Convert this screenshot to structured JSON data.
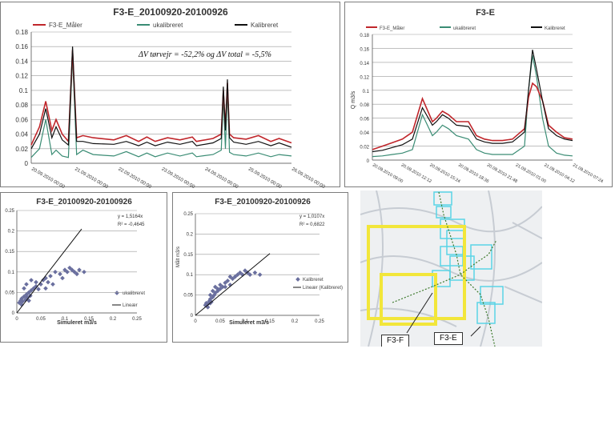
{
  "colors": {
    "measured": "#c0262b",
    "uncalibrated": "#3a8c74",
    "calibrated": "#111111",
    "scatter": "#6a6f9e",
    "grid": "#9a9a9a",
    "highlight": "#f2e63a",
    "catchment": "#5ad4e6",
    "pipe": "#3d7a2c"
  },
  "charts": {
    "ts_main": {
      "title": "F3-E_20100920-20100926",
      "legend": [
        "F3-E_Måler",
        "ukalibreret",
        "Kalibreret"
      ],
      "annotation": "ΔV tørvejr = -52,2% og ΔV total = -5,5%",
      "y_ticks": [
        "0",
        "0.02",
        "0.04",
        "0.06",
        "0.08",
        "0.1",
        "0.12",
        "0.14",
        "0.16",
        "0.18"
      ],
      "x_ticks": [
        "20.09.2010 00:00",
        "21.09.2010 00:00",
        "22.09.2010 00:00",
        "23.09.2010 00:00",
        "24.09.2010 00:00",
        "25.09.2010 00:00",
        "26.09.2010 00:00"
      ]
    },
    "ts_zoom": {
      "title": "F3-E",
      "legend": [
        "F3-E_Måler",
        "ukalibreret",
        "Kalibreret"
      ],
      "ylabel": "Q m3/s",
      "y_ticks": [
        "0",
        "0.02",
        "0.04",
        "0.06",
        "0.08",
        "0.1",
        "0.12",
        "0.14",
        "0.16",
        "0.18"
      ],
      "x_ticks": [
        "20.09.2010 09:00",
        "20.09.2010 12:12",
        "20.09.2010 15:24",
        "20.09.2010 18:36",
        "20.09.2010 21:48",
        "21.09.2010 01:00",
        "21.09.2010 04:12",
        "21.09.2010 07:24"
      ]
    },
    "sc_uncal": {
      "title": "F3-E_20100920-20100926",
      "xlabel": "Simuleret m3/s",
      "equation": "y = 1,5164x",
      "r2": "R² = -0,4645",
      "legend": [
        "ukalibreret",
        "Lineær"
      ],
      "y_ticks": [
        "0",
        "0.05",
        "0.1",
        "0.15",
        "0.2",
        "0.25"
      ],
      "x_ticks": [
        "0",
        "0.05",
        "0.1",
        "0.15",
        "0.2",
        "0.25"
      ]
    },
    "sc_cal": {
      "title": "F3-E_20100920-20100926",
      "xlabel": "Simuleret m3/s",
      "ylabel": "Målt m3/s",
      "equation": "y = 1,0107x",
      "r2": "R² = 0,6822",
      "legend": [
        "Kalibreret",
        "Lineær (Kalibreret)"
      ],
      "y_ticks": [
        "0",
        "0.05",
        "0.1",
        "0.15",
        "0.2",
        "0.25"
      ],
      "x_ticks": [
        "0",
        "0.05",
        "0.1",
        "0.15",
        "0.2",
        "0.25"
      ]
    }
  },
  "map": {
    "labels": [
      "F3-F",
      "F3-E"
    ]
  },
  "chart_data": [
    {
      "type": "line",
      "title": "F3-E_20100920-20100926",
      "ylim": [
        0,
        0.18
      ],
      "x_range": [
        "20.09.2010",
        "26.09.2010"
      ],
      "series": [
        {
          "name": "F3-E_Måler",
          "x": [
            0,
            0.2,
            0.35,
            0.5,
            0.6,
            0.75,
            0.9,
            1.0,
            1.1,
            1.25,
            1.5,
            2,
            2.3,
            2.6,
            2.8,
            3,
            3.3,
            3.6,
            3.9,
            4,
            4.4,
            4.6,
            4.65,
            4.7,
            4.75,
            4.8,
            4.9,
            5.2,
            5.5,
            5.8,
            6,
            6.3
          ],
          "y": [
            0.025,
            0.05,
            0.085,
            0.045,
            0.06,
            0.04,
            0.03,
            0.155,
            0.035,
            0.038,
            0.035,
            0.032,
            0.038,
            0.03,
            0.036,
            0.03,
            0.035,
            0.032,
            0.036,
            0.03,
            0.034,
            0.04,
            0.1,
            0.05,
            0.11,
            0.04,
            0.035,
            0.033,
            0.038,
            0.03,
            0.034,
            0.028
          ]
        },
        {
          "name": "ukalibreret",
          "x": [
            0,
            0.2,
            0.35,
            0.5,
            0.6,
            0.75,
            0.9,
            1.0,
            1.1,
            1.25,
            1.5,
            2,
            2.3,
            2.6,
            2.8,
            3,
            3.3,
            3.6,
            3.9,
            4,
            4.4,
            4.6,
            4.65,
            4.7,
            4.75,
            4.8,
            4.9,
            5.2,
            5.5,
            5.8,
            6,
            6.3
          ],
          "y": [
            0.008,
            0.02,
            0.06,
            0.012,
            0.018,
            0.01,
            0.008,
            0.145,
            0.012,
            0.018,
            0.012,
            0.01,
            0.016,
            0.009,
            0.014,
            0.009,
            0.014,
            0.01,
            0.014,
            0.009,
            0.012,
            0.018,
            0.09,
            0.02,
            0.1,
            0.015,
            0.012,
            0.01,
            0.014,
            0.009,
            0.012,
            0.01
          ]
        },
        {
          "name": "Kalibreret",
          "x": [
            0,
            0.2,
            0.35,
            0.5,
            0.6,
            0.75,
            0.9,
            1.0,
            1.1,
            1.25,
            1.5,
            2,
            2.3,
            2.6,
            2.8,
            3,
            3.3,
            3.6,
            3.9,
            4,
            4.4,
            4.6,
            4.65,
            4.7,
            4.75,
            4.8,
            4.9,
            5.2,
            5.5,
            5.8,
            6,
            6.3
          ],
          "y": [
            0.02,
            0.04,
            0.075,
            0.035,
            0.05,
            0.032,
            0.025,
            0.16,
            0.03,
            0.03,
            0.027,
            0.026,
            0.03,
            0.024,
            0.029,
            0.024,
            0.029,
            0.026,
            0.03,
            0.024,
            0.028,
            0.034,
            0.105,
            0.045,
            0.115,
            0.035,
            0.029,
            0.026,
            0.03,
            0.024,
            0.028,
            0.022
          ]
        }
      ]
    },
    {
      "type": "line",
      "title": "F3-E",
      "ylabel": "Q m3/s",
      "ylim": [
        0,
        0.18
      ],
      "x_range": [
        "20.09.2010 09:00",
        "21.09.2010 07:24"
      ],
      "series": [
        {
          "name": "F3-E_Måler",
          "x": [
            0,
            0.05,
            0.1,
            0.15,
            0.2,
            0.25,
            0.3,
            0.32,
            0.35,
            0.38,
            0.42,
            0.48,
            0.52,
            0.56,
            0.6,
            0.65,
            0.7,
            0.76,
            0.78,
            0.8,
            0.82,
            0.85,
            0.88,
            0.92,
            0.96,
            1.0
          ],
          "y": [
            0.015,
            0.02,
            0.025,
            0.03,
            0.04,
            0.088,
            0.055,
            0.06,
            0.07,
            0.065,
            0.055,
            0.055,
            0.035,
            0.03,
            0.028,
            0.028,
            0.03,
            0.045,
            0.09,
            0.11,
            0.105,
            0.085,
            0.05,
            0.04,
            0.032,
            0.03
          ]
        },
        {
          "name": "ukalibreret",
          "x": [
            0,
            0.05,
            0.1,
            0.15,
            0.2,
            0.25,
            0.3,
            0.32,
            0.35,
            0.38,
            0.42,
            0.48,
            0.52,
            0.56,
            0.6,
            0.65,
            0.7,
            0.76,
            0.78,
            0.8,
            0.82,
            0.85,
            0.88,
            0.92,
            0.96,
            1.0
          ],
          "y": [
            0.005,
            0.006,
            0.008,
            0.01,
            0.015,
            0.065,
            0.035,
            0.04,
            0.05,
            0.045,
            0.035,
            0.03,
            0.015,
            0.01,
            0.008,
            0.008,
            0.008,
            0.02,
            0.1,
            0.15,
            0.12,
            0.06,
            0.02,
            0.01,
            0.007,
            0.006
          ]
        },
        {
          "name": "Kalibreret",
          "x": [
            0,
            0.05,
            0.1,
            0.15,
            0.2,
            0.25,
            0.3,
            0.32,
            0.35,
            0.38,
            0.42,
            0.48,
            0.52,
            0.56,
            0.6,
            0.65,
            0.7,
            0.76,
            0.78,
            0.8,
            0.82,
            0.85,
            0.88,
            0.92,
            0.96,
            1.0
          ],
          "y": [
            0.012,
            0.014,
            0.018,
            0.022,
            0.03,
            0.075,
            0.05,
            0.055,
            0.065,
            0.06,
            0.05,
            0.048,
            0.03,
            0.026,
            0.024,
            0.024,
            0.026,
            0.04,
            0.1,
            0.158,
            0.13,
            0.085,
            0.045,
            0.035,
            0.03,
            0.028
          ]
        }
      ]
    },
    {
      "type": "scatter",
      "title": "F3-E_20100920-20100926",
      "xlabel": "Simuleret m3/s",
      "xlim": [
        0,
        0.25
      ],
      "ylim": [
        0,
        0.25
      ],
      "series": [
        {
          "name": "ukalibreret",
          "x": [
            0.005,
            0.008,
            0.01,
            0.012,
            0.015,
            0.018,
            0.02,
            0.022,
            0.025,
            0.028,
            0.03,
            0.035,
            0.04,
            0.045,
            0.05,
            0.055,
            0.06,
            0.065,
            0.07,
            0.08,
            0.09,
            0.1,
            0.11,
            0.12,
            0.13,
            0.14,
            0.015,
            0.02,
            0.03,
            0.04,
            0.01,
            0.025,
            0.06,
            0.075,
            0.095,
            0.105,
            0.115,
            0.125
          ],
          "y": [
            0.025,
            0.03,
            0.035,
            0.028,
            0.04,
            0.032,
            0.045,
            0.038,
            0.05,
            0.042,
            0.055,
            0.06,
            0.065,
            0.058,
            0.07,
            0.08,
            0.085,
            0.075,
            0.09,
            0.1,
            0.095,
            0.105,
            0.11,
            0.1,
            0.105,
            0.1,
            0.06,
            0.07,
            0.08,
            0.075,
            0.02,
            0.03,
            0.06,
            0.07,
            0.085,
            0.1,
            0.105,
            0.095
          ]
        },
        {
          "name": "Lineær",
          "x": [
            0,
            0.135
          ],
          "y": [
            0,
            0.205
          ]
        }
      ]
    },
    {
      "type": "scatter",
      "title": "F3-E_20100920-20100926",
      "xlabel": "Simuleret m3/s",
      "ylabel": "Målt m3/s",
      "xlim": [
        0,
        0.25
      ],
      "ylim": [
        0,
        0.25
      ],
      "series": [
        {
          "name": "Kalibreret",
          "x": [
            0.02,
            0.022,
            0.025,
            0.028,
            0.03,
            0.032,
            0.035,
            0.038,
            0.04,
            0.045,
            0.05,
            0.055,
            0.06,
            0.065,
            0.07,
            0.075,
            0.08,
            0.085,
            0.09,
            0.1,
            0.11,
            0.12,
            0.13,
            0.025,
            0.03,
            0.04,
            0.05,
            0.06,
            0.03,
            0.035,
            0.045,
            0.07,
            0.095,
            0.105
          ],
          "y": [
            0.025,
            0.03,
            0.028,
            0.035,
            0.04,
            0.033,
            0.045,
            0.05,
            0.055,
            0.06,
            0.065,
            0.07,
            0.08,
            0.085,
            0.075,
            0.09,
            0.095,
            0.1,
            0.105,
            0.11,
            0.1,
            0.105,
            0.1,
            0.02,
            0.05,
            0.07,
            0.075,
            0.07,
            0.03,
            0.06,
            0.065,
            0.095,
            0.1,
            0.105
          ]
        },
        {
          "name": "Lineær (Kalibreret)",
          "x": [
            0,
            0.15
          ],
          "y": [
            0,
            0.152
          ]
        }
      ]
    }
  ]
}
